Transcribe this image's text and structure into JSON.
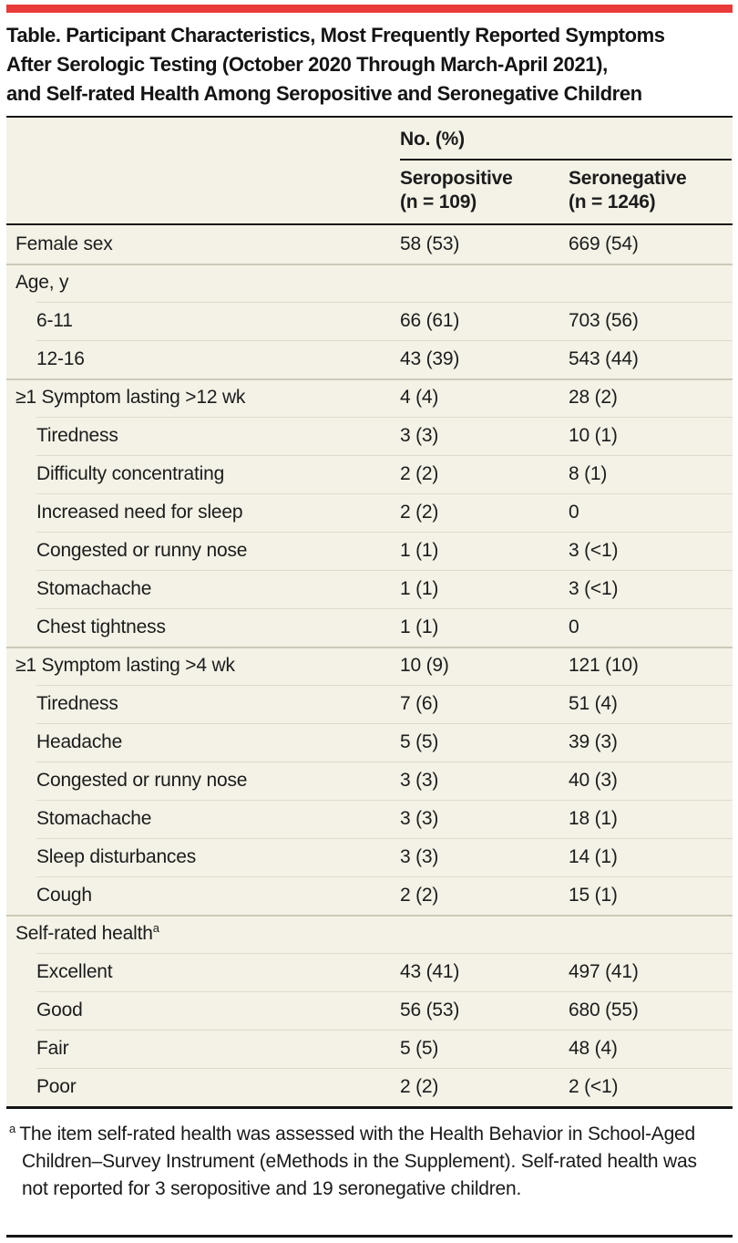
{
  "page": {
    "accent_red": "#e83a38",
    "table_bg": "#f4f2e6"
  },
  "title": {
    "line1": "Table. Participant Characteristics, Most Frequently Reported Symptoms",
    "line2": "After Serologic Testing (October 2020 Through March-April 2021),",
    "line3": "and Self-rated Health Among Seropositive and Seronegative Children"
  },
  "table": {
    "spanner": "No. (%)",
    "columns": [
      {
        "line1": "Seropositive",
        "line2": "(n = 109)"
      },
      {
        "line1": "Seronegative",
        "line2": "(n = 1246)"
      }
    ],
    "rows": [
      {
        "label": "Female sex",
        "indent": 0,
        "sep": "none",
        "values": [
          "58 (53)",
          "669 (54)"
        ]
      },
      {
        "label": "Age, y",
        "indent": 0,
        "sep": "group",
        "values": [
          "",
          ""
        ]
      },
      {
        "label": "6-11",
        "indent": 1,
        "sep": "sub",
        "values": [
          "66 (61)",
          "703 (56)"
        ]
      },
      {
        "label": "12-16",
        "indent": 1,
        "sep": "sub",
        "values": [
          "43 (39)",
          "543 (44)"
        ]
      },
      {
        "label": "≥1 Symptom lasting >12 wk",
        "indent": 0,
        "sep": "group",
        "values": [
          "4 (4)",
          "28 (2)"
        ]
      },
      {
        "label": "Tiredness",
        "indent": 1,
        "sep": "sub",
        "values": [
          "3 (3)",
          "10 (1)"
        ]
      },
      {
        "label": "Difficulty concentrating",
        "indent": 1,
        "sep": "sub",
        "values": [
          "2 (2)",
          "8 (1)"
        ]
      },
      {
        "label": "Increased need for sleep",
        "indent": 1,
        "sep": "sub",
        "values": [
          "2 (2)",
          "0"
        ]
      },
      {
        "label": "Congested or runny nose",
        "indent": 1,
        "sep": "sub",
        "values": [
          "1 (1)",
          "3 (<1)"
        ]
      },
      {
        "label": "Stomachache",
        "indent": 1,
        "sep": "sub",
        "values": [
          "1 (1)",
          "3 (<1)"
        ]
      },
      {
        "label": "Chest tightness",
        "indent": 1,
        "sep": "sub",
        "values": [
          "1 (1)",
          "0"
        ]
      },
      {
        "label": "≥1 Symptom lasting >4 wk",
        "indent": 0,
        "sep": "group",
        "values": [
          "10 (9)",
          "121 (10)"
        ]
      },
      {
        "label": "Tiredness",
        "indent": 1,
        "sep": "sub",
        "values": [
          "7 (6)",
          "51 (4)"
        ]
      },
      {
        "label": "Headache",
        "indent": 1,
        "sep": "sub",
        "values": [
          "5 (5)",
          "39 (3)"
        ]
      },
      {
        "label": "Congested or runny nose",
        "indent": 1,
        "sep": "sub",
        "values": [
          "3 (3)",
          "40 (3)"
        ]
      },
      {
        "label": "Stomachache",
        "indent": 1,
        "sep": "sub",
        "values": [
          "3 (3)",
          "18 (1)"
        ]
      },
      {
        "label": "Sleep disturbances",
        "indent": 1,
        "sep": "sub",
        "values": [
          "3 (3)",
          "14 (1)"
        ]
      },
      {
        "label": "Cough",
        "indent": 1,
        "sep": "sub",
        "values": [
          "2 (2)",
          "15 (1)"
        ]
      },
      {
        "label": "Self-rated health",
        "sup": "a",
        "indent": 0,
        "sep": "group",
        "values": [
          "",
          ""
        ]
      },
      {
        "label": "Excellent",
        "indent": 1,
        "sep": "sub",
        "values": [
          "43 (41)",
          "497 (41)"
        ]
      },
      {
        "label": "Good",
        "indent": 1,
        "sep": "sub",
        "values": [
          "56 (53)",
          "680 (55)"
        ]
      },
      {
        "label": "Fair",
        "indent": 1,
        "sep": "sub",
        "values": [
          "5 (5)",
          "48 (4)"
        ]
      },
      {
        "label": "Poor",
        "indent": 1,
        "sep": "sub",
        "values": [
          "2 (2)",
          "2 (<1)"
        ]
      }
    ]
  },
  "footnote": {
    "marker": "a",
    "text": "The item self-rated health was assessed with the Health Behavior in School-Aged Children–Survey Instrument (eMethods in the Supplement). Self-rated health was not reported for 3 seropositive and 19 seronegative children."
  }
}
